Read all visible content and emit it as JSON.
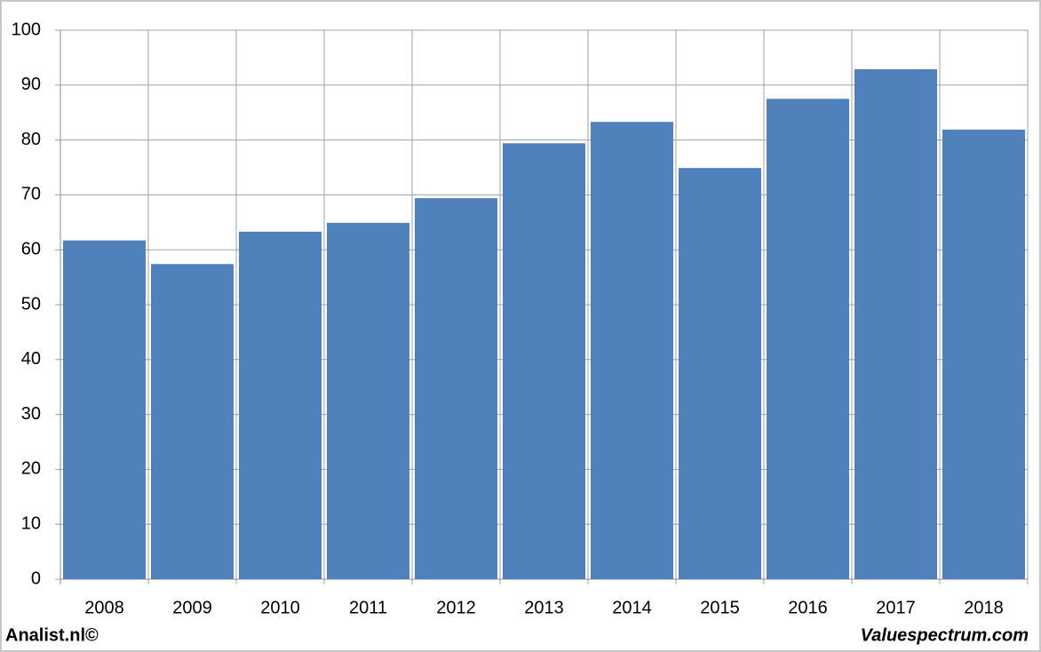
{
  "chart_data": {
    "type": "bar",
    "categories": [
      "2008",
      "2009",
      "2010",
      "2011",
      "2012",
      "2013",
      "2014",
      "2015",
      "2016",
      "2017",
      "2018"
    ],
    "values": [
      61.7,
      57.4,
      63.3,
      64.9,
      69.4,
      79.4,
      83.3,
      74.9,
      87.5,
      92.9,
      81.9
    ],
    "color": "#4f81bd",
    "ylim": [
      0,
      100
    ],
    "yticks": [
      0,
      10,
      20,
      30,
      40,
      50,
      60,
      70,
      80,
      90,
      100
    ],
    "grid": true,
    "source_left": "Analist.nl©",
    "source_right": "Valuespectrum.com"
  }
}
